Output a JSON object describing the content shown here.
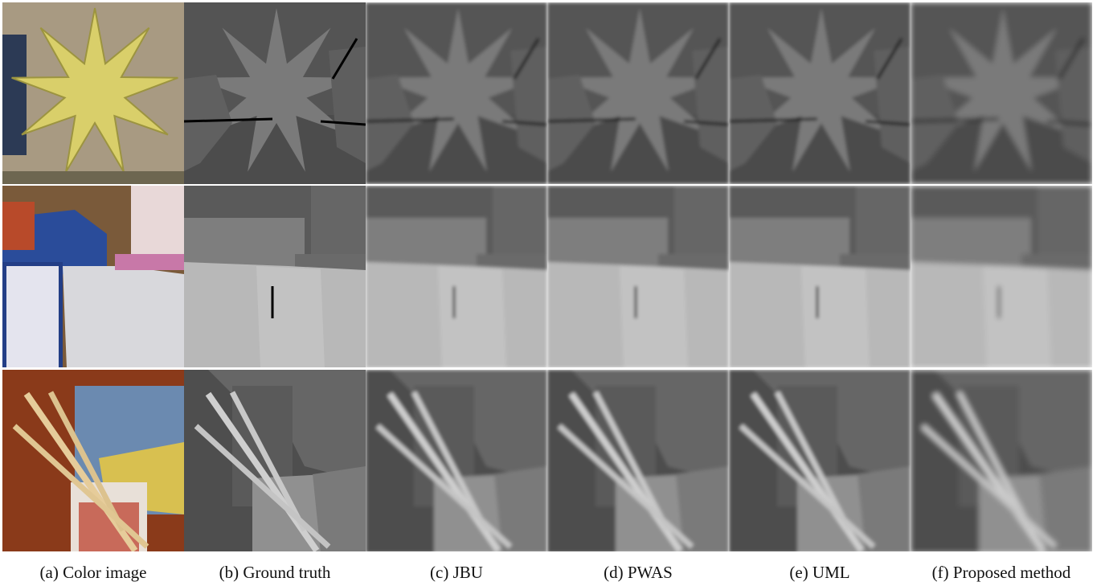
{
  "captions": [
    "(a) Color image",
    "(b) Ground truth",
    "(c) JBU",
    "(d) PWAS",
    "(e) UML",
    "(f) Proposed method"
  ]
}
